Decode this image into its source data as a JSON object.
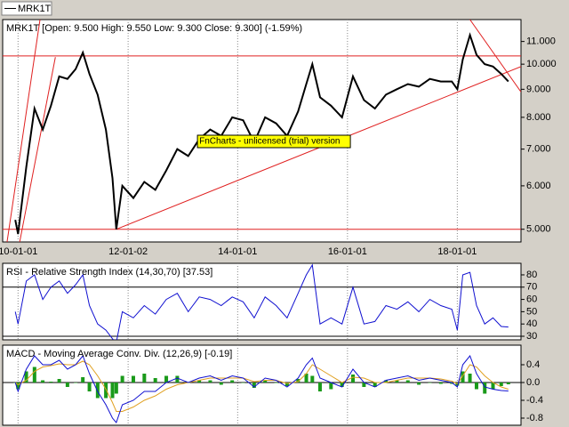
{
  "chart_data": [
    {
      "type": "line",
      "title": "MRK1T [Open: 9.500  High: 9.550  Low: 9.300  Close: 9.300] (-1.59%)",
      "watermark": "FnCharts - unlicensed (trial) version",
      "log_scale": true,
      "xlim": [
        2009.72,
        2019.16
      ],
      "xticks": [
        {
          "value": 2010,
          "label": "10-01-01"
        },
        {
          "value": 2012.005,
          "label": "12-01-02"
        },
        {
          "value": 2014,
          "label": "14-01-01"
        },
        {
          "value": 2016,
          "label": "16-01-01"
        },
        {
          "value": 2018,
          "label": "18-01-01"
        }
      ],
      "ylim": [
        4.74,
        12.06
      ],
      "yticks": [
        {
          "value": 5,
          "label": "5.000"
        },
        {
          "value": 6,
          "label": "6.000"
        },
        {
          "value": 7,
          "label": "7.000"
        },
        {
          "value": 8,
          "label": "8.000"
        },
        {
          "value": 9,
          "label": "9.000"
        },
        {
          "value": 10,
          "label": "10.000"
        },
        {
          "value": 11,
          "label": "11.000"
        }
      ],
      "x": [
        2009.95,
        2010.0,
        2010.15,
        2010.3,
        2010.45,
        2010.6,
        2010.75,
        2010.9,
        2011.05,
        2011.18,
        2011.3,
        2011.45,
        2011.6,
        2011.72,
        2011.79,
        2011.9,
        2012.1,
        2012.3,
        2012.5,
        2012.7,
        2012.9,
        2013.1,
        2013.3,
        2013.5,
        2013.7,
        2013.9,
        2014.1,
        2014.3,
        2014.5,
        2014.7,
        2014.9,
        2015.1,
        2015.25,
        2015.36,
        2015.5,
        2015.7,
        2015.9,
        2016.1,
        2016.3,
        2016.5,
        2016.7,
        2016.9,
        2017.1,
        2017.3,
        2017.5,
        2017.7,
        2017.9,
        2018.0,
        2018.1,
        2018.23,
        2018.35,
        2018.5,
        2018.65,
        2018.8,
        2018.93
      ],
      "series": [
        {
          "name": "MRK1T",
          "color": "#000000",
          "values": [
            5.2,
            4.9,
            6.5,
            8.3,
            7.6,
            8.4,
            9.5,
            9.4,
            9.8,
            10.5,
            9.6,
            8.8,
            7.6,
            6.2,
            5.0,
            6.0,
            5.7,
            6.1,
            5.9,
            6.4,
            7.0,
            6.8,
            7.3,
            7.6,
            7.4,
            8.0,
            7.9,
            7.2,
            8.0,
            7.8,
            7.4,
            8.2,
            9.2,
            10.0,
            8.7,
            8.4,
            8.0,
            9.5,
            8.6,
            8.3,
            8.8,
            9.0,
            9.2,
            9.1,
            9.4,
            9.3,
            9.3,
            9.0,
            10.2,
            11.3,
            10.4,
            10.0,
            9.9,
            9.6,
            9.3
          ]
        }
      ],
      "hlines": [
        10.35,
        5.0
      ],
      "trendlines": [
        [
          [
            2009.8,
            4.74
          ],
          [
            2010.4,
            12.06
          ]
        ],
        [
          [
            2010.03,
            4.74
          ],
          [
            2010.68,
            10.3
          ]
        ],
        [
          [
            2011.79,
            5.0
          ],
          [
            2019.16,
            9.9
          ]
        ],
        [
          [
            2018.23,
            12.06
          ],
          [
            2019.16,
            8.9
          ]
        ]
      ],
      "line_color": "#e02020"
    },
    {
      "type": "line",
      "title": "RSI - Relative Strength Index (14,30,70) [37.53]",
      "log_scale": false,
      "xlim": [
        2009.72,
        2019.16
      ],
      "ylim": [
        27.1,
        89.4
      ],
      "yticks": [
        30,
        40,
        50,
        60,
        70,
        80
      ],
      "x": [
        2009.95,
        2010.0,
        2010.15,
        2010.3,
        2010.45,
        2010.6,
        2010.75,
        2010.9,
        2011.05,
        2011.18,
        2011.3,
        2011.45,
        2011.6,
        2011.72,
        2011.79,
        2011.9,
        2012.1,
        2012.3,
        2012.5,
        2012.7,
        2012.9,
        2013.1,
        2013.3,
        2013.5,
        2013.7,
        2013.9,
        2014.1,
        2014.3,
        2014.5,
        2014.7,
        2014.9,
        2015.1,
        2015.25,
        2015.36,
        2015.5,
        2015.7,
        2015.9,
        2016.1,
        2016.3,
        2016.5,
        2016.7,
        2016.9,
        2017.1,
        2017.3,
        2017.5,
        2017.7,
        2017.9,
        2018.0,
        2018.1,
        2018.23,
        2018.35,
        2018.5,
        2018.65,
        2018.8,
        2018.93
      ],
      "series": [
        {
          "color": "#1010d0",
          "values": [
            50,
            40,
            75,
            80,
            60,
            70,
            75,
            65,
            72,
            80,
            55,
            40,
            35,
            28,
            25,
            50,
            45,
            55,
            48,
            60,
            65,
            50,
            62,
            60,
            55,
            62,
            58,
            45,
            62,
            55,
            45,
            65,
            80,
            88,
            40,
            45,
            40,
            70,
            40,
            42,
            55,
            52,
            58,
            50,
            60,
            55,
            52,
            35,
            80,
            82,
            55,
            40,
            45,
            38,
            37.53
          ]
        }
      ],
      "hlines": [
        70,
        30
      ],
      "line_color": "#000000"
    },
    {
      "type": "line",
      "title": "MACD - Moving Average Conv. Div. (12,26,9) [-0.19]",
      "log_scale": false,
      "xlim": [
        2009.72,
        2019.16
      ],
      "ylim": [
        -0.96,
        0.84
      ],
      "yticks": [
        0.4,
        {
          "value": 0,
          "label": "0.0"
        },
        -0.4,
        -0.8
      ],
      "x": [
        2009.95,
        2010.0,
        2010.15,
        2010.3,
        2010.45,
        2010.6,
        2010.75,
        2010.9,
        2011.05,
        2011.18,
        2011.3,
        2011.45,
        2011.6,
        2011.72,
        2011.79,
        2011.9,
        2012.1,
        2012.3,
        2012.5,
        2012.7,
        2012.9,
        2013.1,
        2013.3,
        2013.5,
        2013.7,
        2013.9,
        2014.1,
        2014.3,
        2014.5,
        2014.7,
        2014.9,
        2015.1,
        2015.25,
        2015.36,
        2015.5,
        2015.7,
        2015.9,
        2016.1,
        2016.3,
        2016.5,
        2016.7,
        2016.9,
        2017.1,
        2017.3,
        2017.5,
        2017.7,
        2017.9,
        2018.0,
        2018.1,
        2018.23,
        2018.35,
        2018.5,
        2018.65,
        2018.8,
        2018.93
      ],
      "histogram": {
        "color": "#1a9a1a",
        "values": [
          0,
          -0.15,
          0.25,
          0.35,
          0.05,
          0.02,
          0.08,
          -0.1,
          0,
          0.12,
          -0.2,
          -0.35,
          -0.35,
          -0.35,
          -0.25,
          0.15,
          0.15,
          0.2,
          0.1,
          0.15,
          0.15,
          0,
          0.05,
          0.05,
          -0.05,
          0.05,
          0,
          -0.12,
          0.05,
          0,
          -0.08,
          0.08,
          0.2,
          0.15,
          -0.2,
          -0.15,
          -0.1,
          0.18,
          -0.1,
          -0.1,
          0.05,
          0.05,
          0.05,
          -0.05,
          0,
          -0.03,
          -0.03,
          -0.07,
          0.25,
          0.2,
          -0.15,
          -0.25,
          -0.15,
          -0.08,
          -0.04
        ]
      },
      "series": [
        {
          "color": "#e0a020",
          "values": [
            0,
            -0.05,
            0.05,
            0.25,
            0.35,
            0.38,
            0.42,
            0.4,
            0.4,
            0.48,
            0.4,
            0.15,
            -0.15,
            -0.45,
            -0.65,
            -0.65,
            -0.55,
            -0.4,
            -0.3,
            -0.15,
            -0.05,
            0.0,
            0.05,
            0.1,
            0.1,
            0.1,
            0.1,
            0.02,
            0.05,
            0.05,
            -0.02,
            0.02,
            0.2,
            0.4,
            0.3,
            0.15,
            0.0,
            0.12,
            0.1,
            0.0,
            0.0,
            0.05,
            0.1,
            0.1,
            0.1,
            0.08,
            0.03,
            -0.03,
            0.15,
            0.4,
            0.35,
            0.15,
            0.0,
            -0.1,
            -0.15
          ]
        },
        {
          "color": "#1010d0",
          "values": [
            0,
            -0.2,
            0.3,
            0.6,
            0.4,
            0.4,
            0.5,
            0.3,
            0.4,
            0.6,
            0.2,
            -0.2,
            -0.5,
            -0.8,
            -0.9,
            -0.5,
            -0.4,
            -0.2,
            -0.2,
            0.0,
            0.1,
            0.0,
            0.1,
            0.15,
            0.05,
            0.15,
            0.1,
            -0.1,
            0.1,
            0.05,
            -0.1,
            0.1,
            0.4,
            0.55,
            0.1,
            0.0,
            -0.1,
            0.3,
            0.0,
            -0.1,
            0.05,
            0.1,
            0.15,
            0.05,
            0.1,
            0.05,
            0.0,
            -0.1,
            0.4,
            0.6,
            0.2,
            -0.1,
            -0.15,
            -0.18,
            -0.19
          ]
        }
      ],
      "hlines": [
        0
      ],
      "line_color": "#000000"
    }
  ]
}
